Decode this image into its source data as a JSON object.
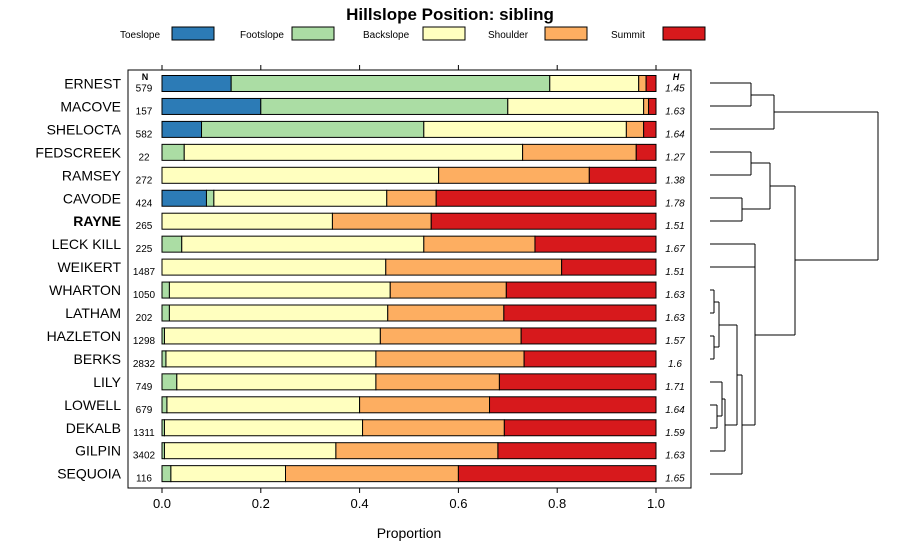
{
  "chart_data": {
    "type": "bar",
    "orientation": "horizontal",
    "stacked": true,
    "title": "Hillslope Position: sibling",
    "xlabel": "Proportion",
    "xlim": [
      0,
      1
    ],
    "xticks": [
      "0.0",
      "0.2",
      "0.4",
      "0.6",
      "0.8",
      "1.0"
    ],
    "legend_position": "top",
    "n_header": "N",
    "h_header": "H",
    "highlighted": "RAYNE",
    "categories": [
      "ERNEST",
      "MACOVE",
      "SHELOCTA",
      "FEDSCREEK",
      "RAMSEY",
      "CAVODE",
      "RAYNE",
      "LECK KILL",
      "WEIKERT",
      "WHARTON",
      "LATHAM",
      "HAZLETON",
      "BERKS",
      "LILY",
      "LOWELL",
      "DEKALB",
      "GILPIN",
      "SEQUOIA"
    ],
    "n": [
      "579",
      "157",
      "582",
      "22",
      "272",
      "424",
      "265",
      "225",
      "1487",
      "1050",
      "202",
      "1298",
      "2832",
      "749",
      "679",
      "1311",
      "3402",
      "116"
    ],
    "h": [
      "1.45",
      "1.63",
      "1.64",
      "1.27",
      "1.38",
      "1.78",
      "1.51",
      "1.67",
      "1.51",
      "1.63",
      "1.63",
      "1.57",
      "1.6",
      "1.71",
      "1.64",
      "1.59",
      "1.63",
      "1.65"
    ],
    "series": [
      {
        "name": "Toeslope",
        "color": "#2c7bb6",
        "values": [
          0.14,
          0.2,
          0.08,
          0.0,
          0.0,
          0.09,
          0.0,
          0.0,
          0.0,
          0.0,
          0.0,
          0.0,
          0.0,
          0.0,
          0.0,
          0.0,
          0.0,
          0.0
        ]
      },
      {
        "name": "Footslope",
        "color": "#abdda4",
        "values": [
          0.645,
          0.5,
          0.45,
          0.045,
          0.0,
          0.015,
          0.0,
          0.04,
          0.0,
          0.015,
          0.015,
          0.005,
          0.008,
          0.03,
          0.01,
          0.005,
          0.005,
          0.018
        ]
      },
      {
        "name": "Backslope",
        "color": "#ffffbf",
        "values": [
          0.18,
          0.275,
          0.41,
          0.685,
          0.56,
          0.35,
          0.345,
          0.49,
          0.453,
          0.447,
          0.442,
          0.437,
          0.425,
          0.403,
          0.39,
          0.401,
          0.347,
          0.232
        ]
      },
      {
        "name": "Shoulder",
        "color": "#fdae61",
        "values": [
          0.015,
          0.01,
          0.035,
          0.23,
          0.305,
          0.1,
          0.2,
          0.225,
          0.356,
          0.235,
          0.235,
          0.285,
          0.3,
          0.25,
          0.263,
          0.287,
          0.328,
          0.35
        ]
      },
      {
        "name": "Summit",
        "color": "#d7191c",
        "values": [
          0.02,
          0.015,
          0.025,
          0.04,
          0.135,
          0.445,
          0.455,
          0.245,
          0.191,
          0.303,
          0.308,
          0.273,
          0.267,
          0.317,
          0.337,
          0.307,
          0.32,
          0.4
        ]
      }
    ]
  }
}
